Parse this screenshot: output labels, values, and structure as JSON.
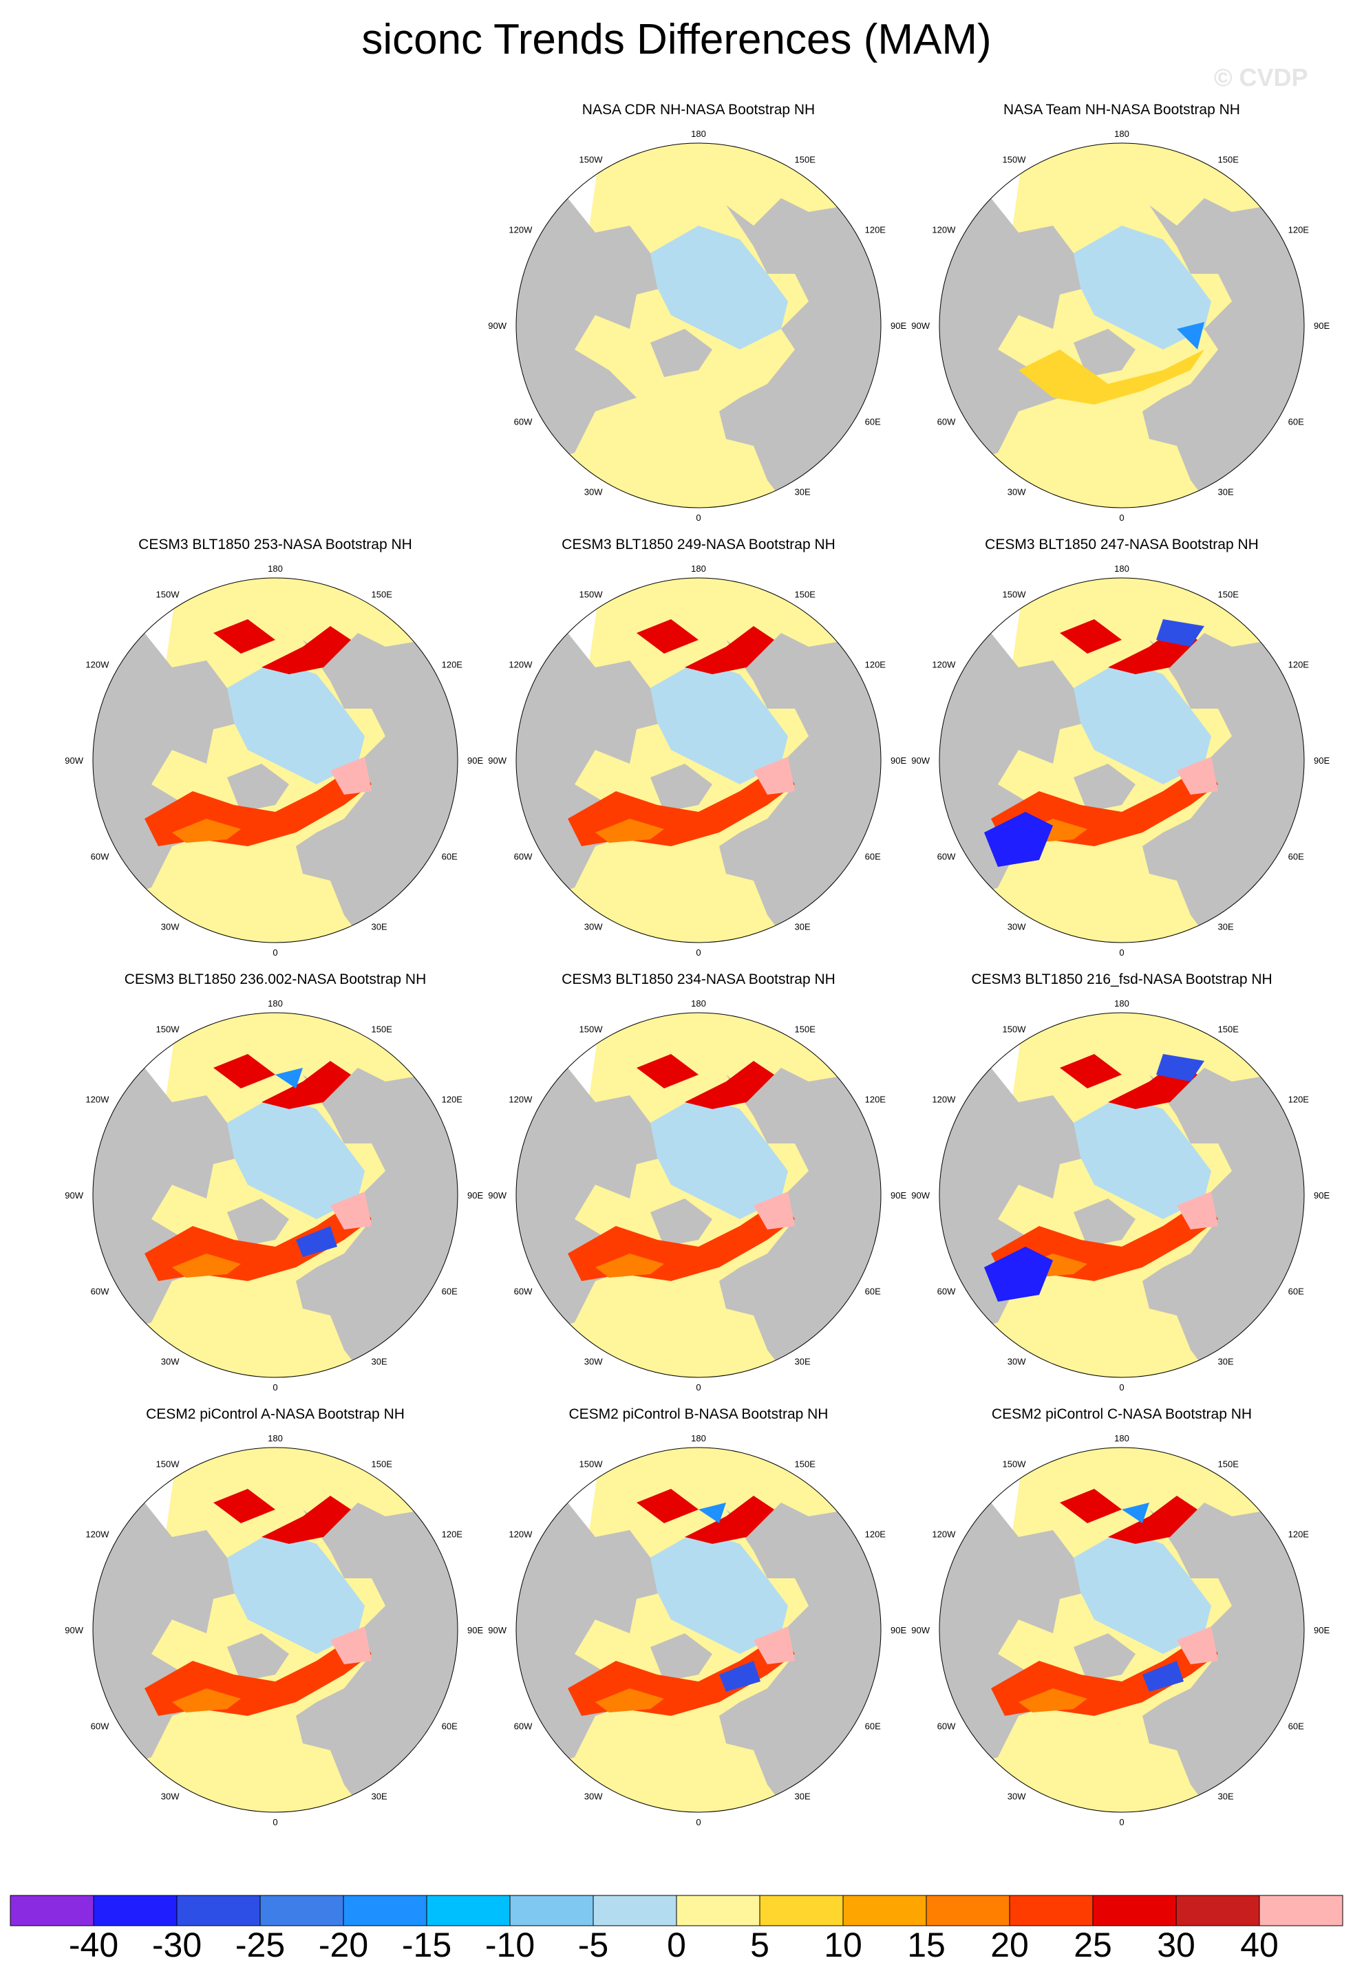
{
  "title": "siconc Trends Differences (MAM)",
  "watermark": "© CVDP",
  "lon_labels": {
    "top": "180",
    "top_l": "150W",
    "top_r": "150E",
    "ul": "120W",
    "ur": "120E",
    "l": "90W",
    "r": "90E",
    "ll": "60W",
    "lr": "60E",
    "bl": "30W",
    "br": "30E",
    "bottom": "0"
  },
  "panels": [
    {
      "title": "NASA CDR NH-NASA Bootstrap NH",
      "pattern": "obs_cdr"
    },
    {
      "title": "NASA Team NH-NASA Bootstrap NH",
      "pattern": "obs_team"
    },
    {
      "title": "CESM3 BLT1850 253-NASA Bootstrap NH",
      "pattern": "model_warm"
    },
    {
      "title": "CESM3 BLT1850 249-NASA Bootstrap NH",
      "pattern": "model_warm"
    },
    {
      "title": "CESM3 BLT1850 247-NASA Bootstrap NH",
      "pattern": "model_blue"
    },
    {
      "title": "CESM3 BLT1850 236.002-NASA Bootstrap NH",
      "pattern": "model_mixed"
    },
    {
      "title": "CESM3 BLT1850 234-NASA Bootstrap NH",
      "pattern": "model_warm"
    },
    {
      "title": "CESM3 BLT1850 216_fsd-NASA Bootstrap NH",
      "pattern": "model_blue"
    },
    {
      "title": "CESM2 piControl A-NASA Bootstrap NH",
      "pattern": "model_warm"
    },
    {
      "title": "CESM2 piControl B-NASA Bootstrap NH",
      "pattern": "model_mixed"
    },
    {
      "title": "CESM2 piControl C-NASA Bootstrap NH",
      "pattern": "model_mixed"
    }
  ],
  "colorbar": {
    "labels": [
      "-40",
      "-30",
      "-25",
      "-20",
      "-15",
      "-10",
      "-5",
      "0",
      "5",
      "10",
      "15",
      "20",
      "25",
      "30",
      "40"
    ],
    "colors": [
      "#8a2be2",
      "#1e1eff",
      "#2e4fe6",
      "#3e7ee8",
      "#1e90ff",
      "#00bfff",
      "#7ec8f2",
      "#b4dcf0",
      "#fff59a",
      "#ffd62e",
      "#ffa500",
      "#ff7f00",
      "#ff3c00",
      "#e60000",
      "#c81e1e",
      "#ffb4b4"
    ]
  },
  "colors": {
    "land": "#c0c0c0",
    "ocean_bg": "#ffffff",
    "zero_fill": "#fff59a"
  }
}
